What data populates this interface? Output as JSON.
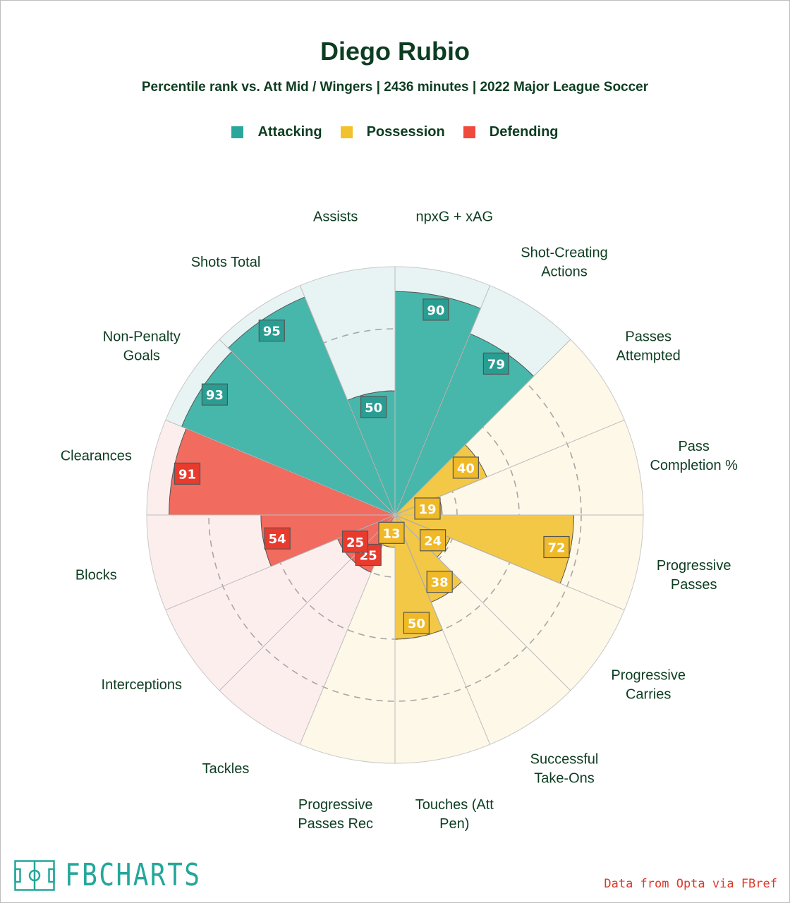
{
  "header": {
    "title": "Diego Rubio",
    "subtitle": "Percentile rank vs. Att Mid / Wingers | 2436 minutes | 2022 Major League Soccer"
  },
  "legend": [
    {
      "label": "Attacking",
      "color": "#2aa79b"
    },
    {
      "label": "Possession",
      "color": "#f2c12e"
    },
    {
      "label": "Defending",
      "color": "#ef4a3c"
    }
  ],
  "chart_data": {
    "type": "polar-bar",
    "range": [
      0,
      100
    ],
    "rings": [
      25,
      50,
      75
    ],
    "categories": [
      {
        "label": [
          "npxG + xAG"
        ],
        "value": 90,
        "group": "Attacking"
      },
      {
        "label": [
          "Shot-Creating",
          "Actions"
        ],
        "value": 79,
        "group": "Attacking"
      },
      {
        "label": [
          "Passes",
          "Attempted"
        ],
        "value": 40,
        "group": "Possession"
      },
      {
        "label": [
          "Pass",
          "Completion %"
        ],
        "value": 19,
        "group": "Possession"
      },
      {
        "label": [
          "Progressive",
          "Passes"
        ],
        "value": 72,
        "group": "Possession"
      },
      {
        "label": [
          "Progressive",
          "Carries"
        ],
        "value": 24,
        "group": "Possession"
      },
      {
        "label": [
          "Successful",
          "Take-Ons"
        ],
        "value": 38,
        "group": "Possession"
      },
      {
        "label": [
          "Touches (Att",
          "Pen)"
        ],
        "value": 50,
        "group": "Possession"
      },
      {
        "label": [
          "Progressive",
          "Passes Rec"
        ],
        "value": 13,
        "group": "Possession"
      },
      {
        "label": [
          "Tackles"
        ],
        "value": 25,
        "group": "Defending"
      },
      {
        "label": [
          "Interceptions"
        ],
        "value": 25,
        "group": "Defending"
      },
      {
        "label": [
          "Blocks"
        ],
        "value": 54,
        "group": "Defending"
      },
      {
        "label": [
          "Clearances"
        ],
        "value": 91,
        "group": "Defending"
      },
      {
        "label": [
          "Non-Penalty",
          "Goals"
        ],
        "value": 93,
        "group": "Attacking"
      },
      {
        "label": [
          "Shots Total"
        ],
        "value": 95,
        "group": "Attacking"
      },
      {
        "label": [
          "Assists"
        ],
        "value": 50,
        "group": "Attacking"
      }
    ]
  },
  "colors": {
    "Attacking": {
      "bar": "#48b7ab",
      "bg": "#e7f4f3",
      "box": "#2a9d92"
    },
    "Possession": {
      "bar": "#f4c847",
      "bg": "#fdf8e8",
      "box": "#efb928"
    },
    "Defending": {
      "bar": "#f16b5f",
      "bg": "#fdeeee",
      "box": "#e83b2e"
    }
  },
  "footer": {
    "logo_text": "FBCHARTS",
    "credit": "Data from Opta via FBref"
  }
}
